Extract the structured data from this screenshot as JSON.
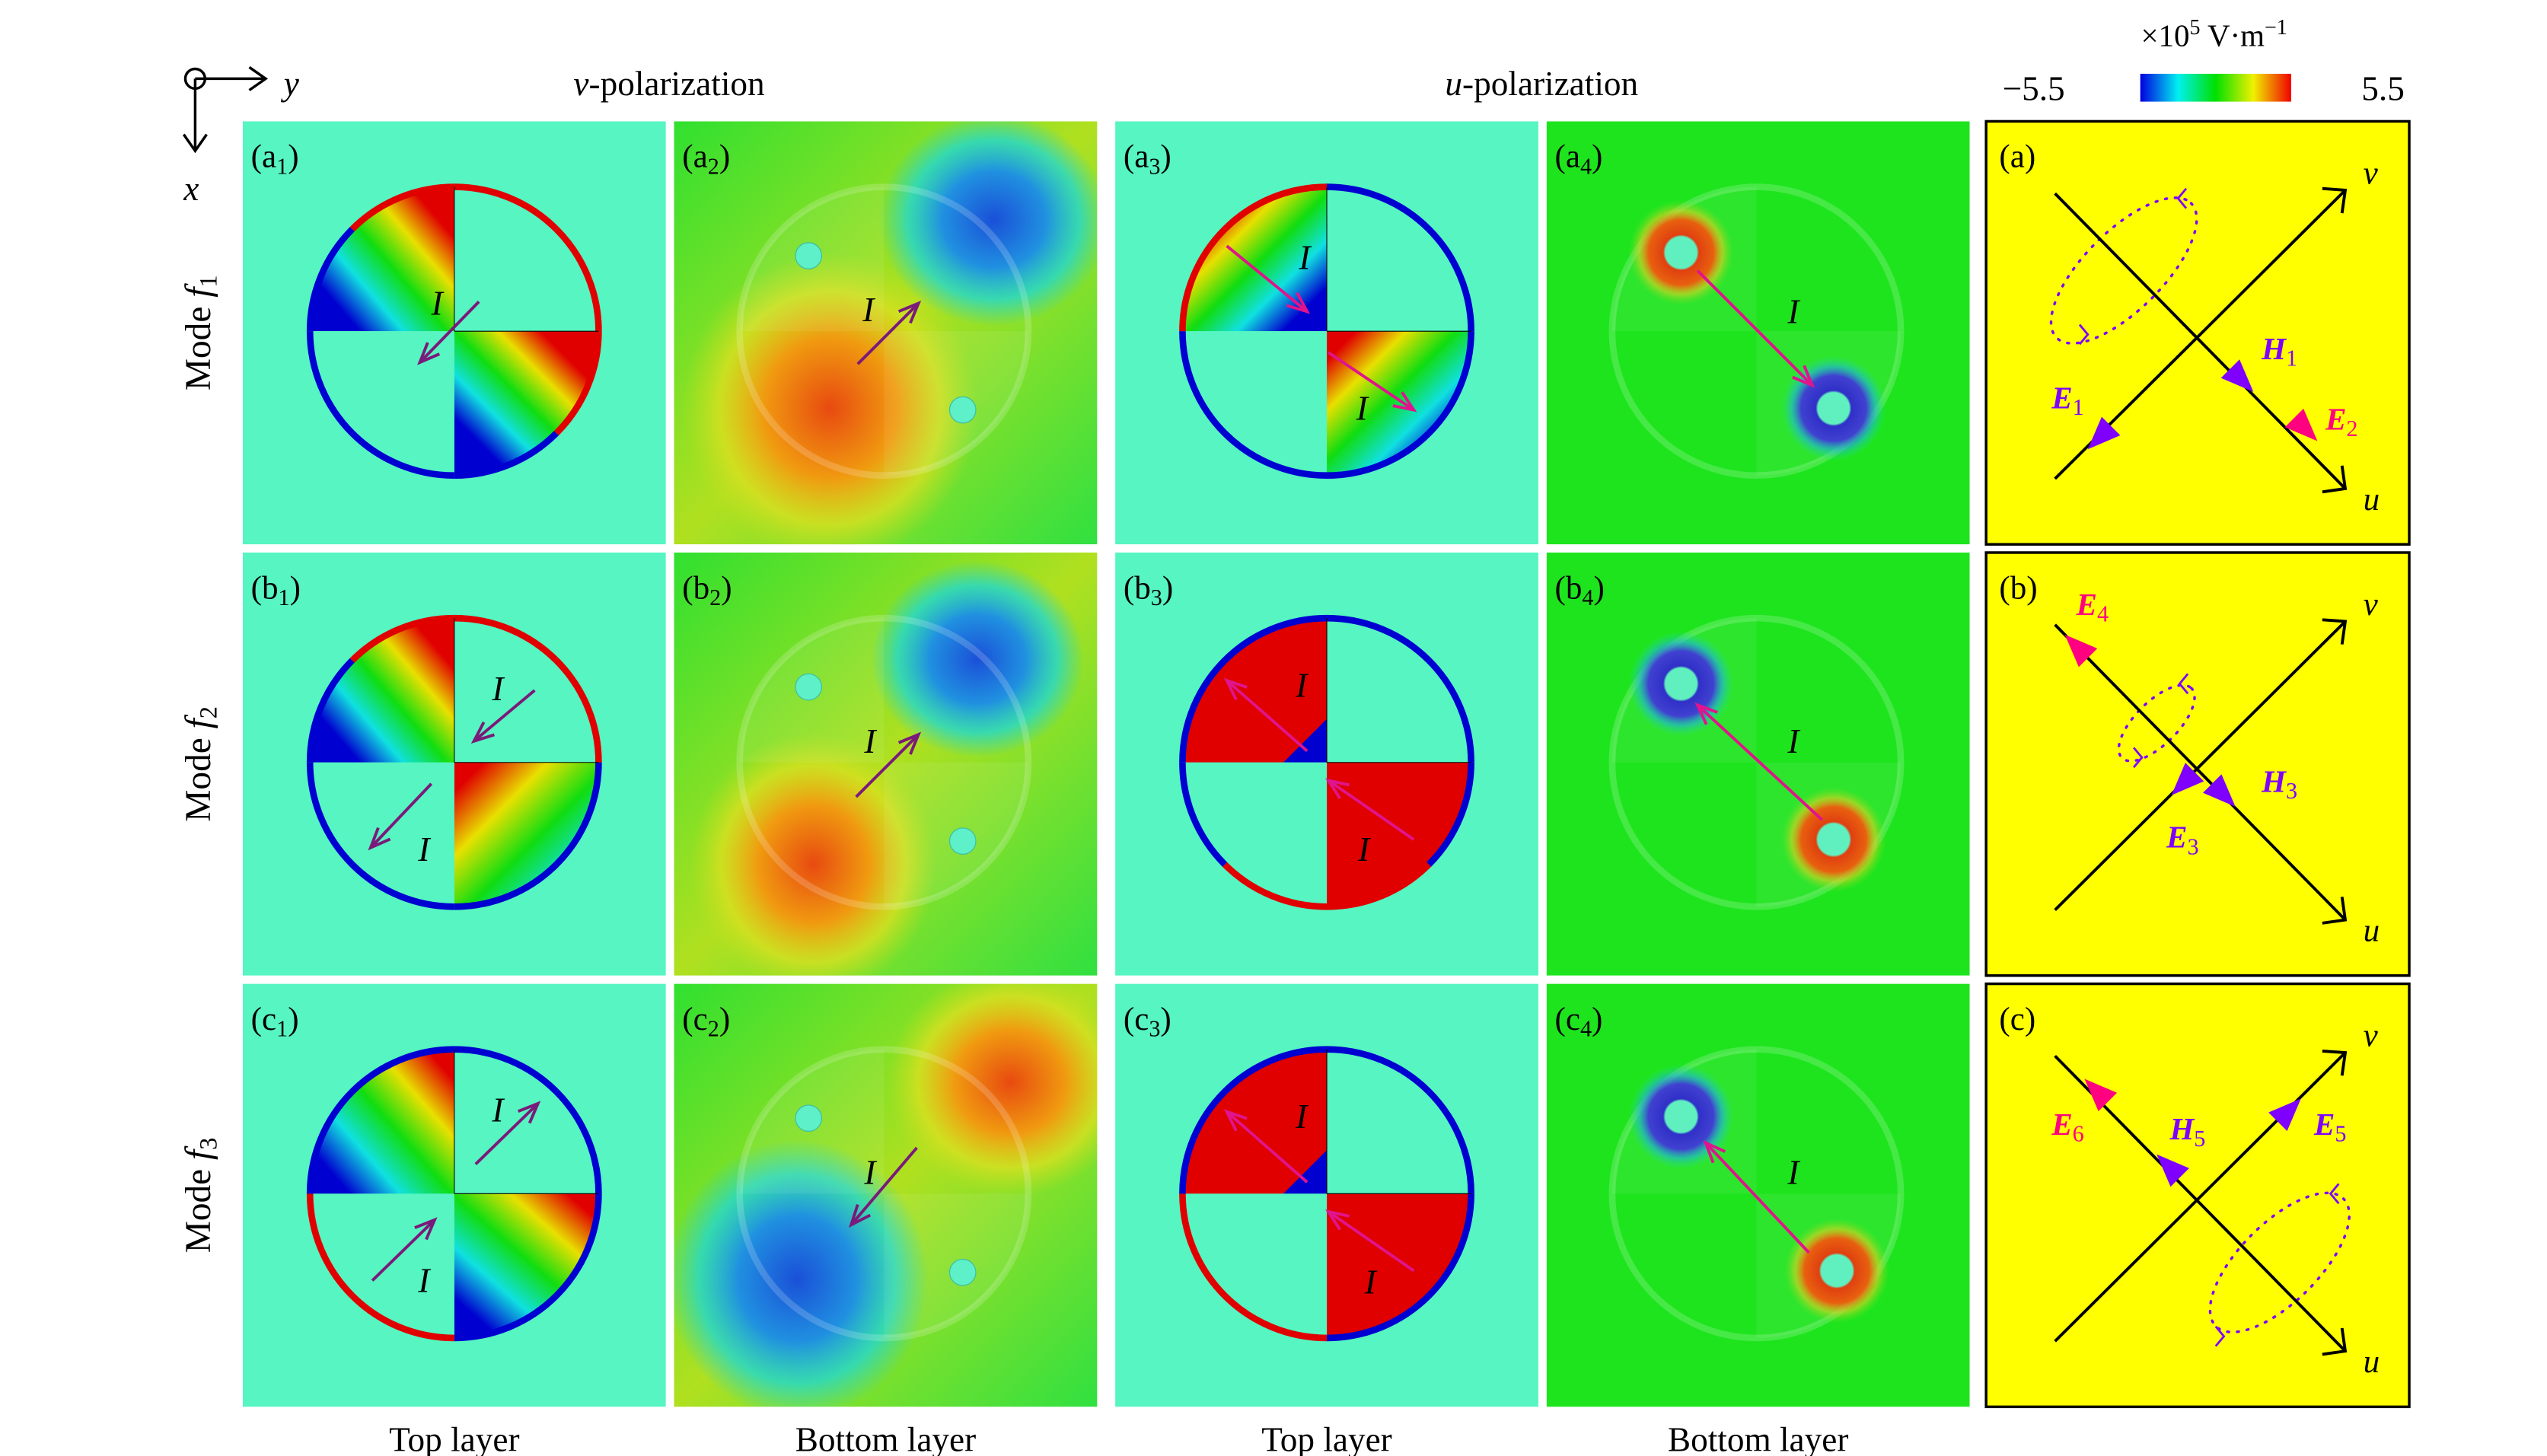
{
  "header": {
    "v_pol_symbol": "v",
    "v_pol_text": "-polarization",
    "u_pol_symbol": "u",
    "u_pol_text": "-polarization"
  },
  "axes": {
    "x": "x",
    "y": "y"
  },
  "colorbar": {
    "unit_prefix": "×10",
    "unit_exp": "5",
    "unit_main": " V·m",
    "unit_exp2": "−1",
    "min": "−5.5",
    "max": "5.5",
    "colors": [
      "#0000e0",
      "#00f0f0",
      "#00e000",
      "#f0f000",
      "#f00000"
    ]
  },
  "rows": [
    {
      "mode": "Mode ",
      "f": "f",
      "sub": "1"
    },
    {
      "mode": "Mode ",
      "f": "f",
      "sub": "2"
    },
    {
      "mode": "Mode ",
      "f": "f",
      "sub": "3"
    }
  ],
  "columns": [
    "Top layer",
    "Bottom layer",
    "Top layer",
    "Bottom layer"
  ],
  "panels": [
    {
      "tag": [
        "(a",
        "1",
        ")"
      ],
      "current_label": "I"
    },
    {
      "tag": [
        "(a",
        "2",
        ")"
      ],
      "current_label": "I"
    },
    {
      "tag": [
        "(a",
        "3",
        ")"
      ],
      "current_label": "I"
    },
    {
      "tag": [
        "(a",
        "4",
        ")"
      ],
      "current_label": "I"
    },
    {
      "tag": [
        "(b",
        "1",
        ")"
      ],
      "current_label": "I"
    },
    {
      "tag": [
        "(b",
        "2",
        ")"
      ],
      "current_label": "I"
    },
    {
      "tag": [
        "(b",
        "3",
        ")"
      ],
      "current_label": "I"
    },
    {
      "tag": [
        "(b",
        "4",
        ")"
      ],
      "current_label": "I"
    },
    {
      "tag": [
        "(c",
        "1",
        ")"
      ],
      "current_label": "I"
    },
    {
      "tag": [
        "(c",
        "2",
        ")"
      ],
      "current_label": "I"
    },
    {
      "tag": [
        "(c",
        "3",
        ")"
      ],
      "current_label": "I"
    },
    {
      "tag": [
        "(c",
        "4",
        ")"
      ],
      "current_label": "I"
    }
  ],
  "schematics": [
    {
      "tag": "(a)",
      "u": "u",
      "v": "v",
      "vectors": [
        {
          "main": "H",
          "sub": "1",
          "color": "#7f00ff"
        },
        {
          "main": "E",
          "sub": "1",
          "color": "#7f00ff"
        },
        {
          "main": "E",
          "sub": "2",
          "color": "#ff0080"
        }
      ]
    },
    {
      "tag": "(b)",
      "u": "u",
      "v": "v",
      "vectors": [
        {
          "main": "E",
          "sub": "4",
          "color": "#ff0080"
        },
        {
          "main": "E",
          "sub": "3",
          "color": "#7f00ff"
        },
        {
          "main": "H",
          "sub": "3",
          "color": "#7f00ff"
        }
      ]
    },
    {
      "tag": "(c)",
      "u": "u",
      "v": "v",
      "vectors": [
        {
          "main": "E",
          "sub": "6",
          "color": "#ff0080"
        },
        {
          "main": "H",
          "sub": "5",
          "color": "#7f00ff"
        },
        {
          "main": "E",
          "sub": "5",
          "color": "#7f00ff"
        }
      ]
    }
  ]
}
